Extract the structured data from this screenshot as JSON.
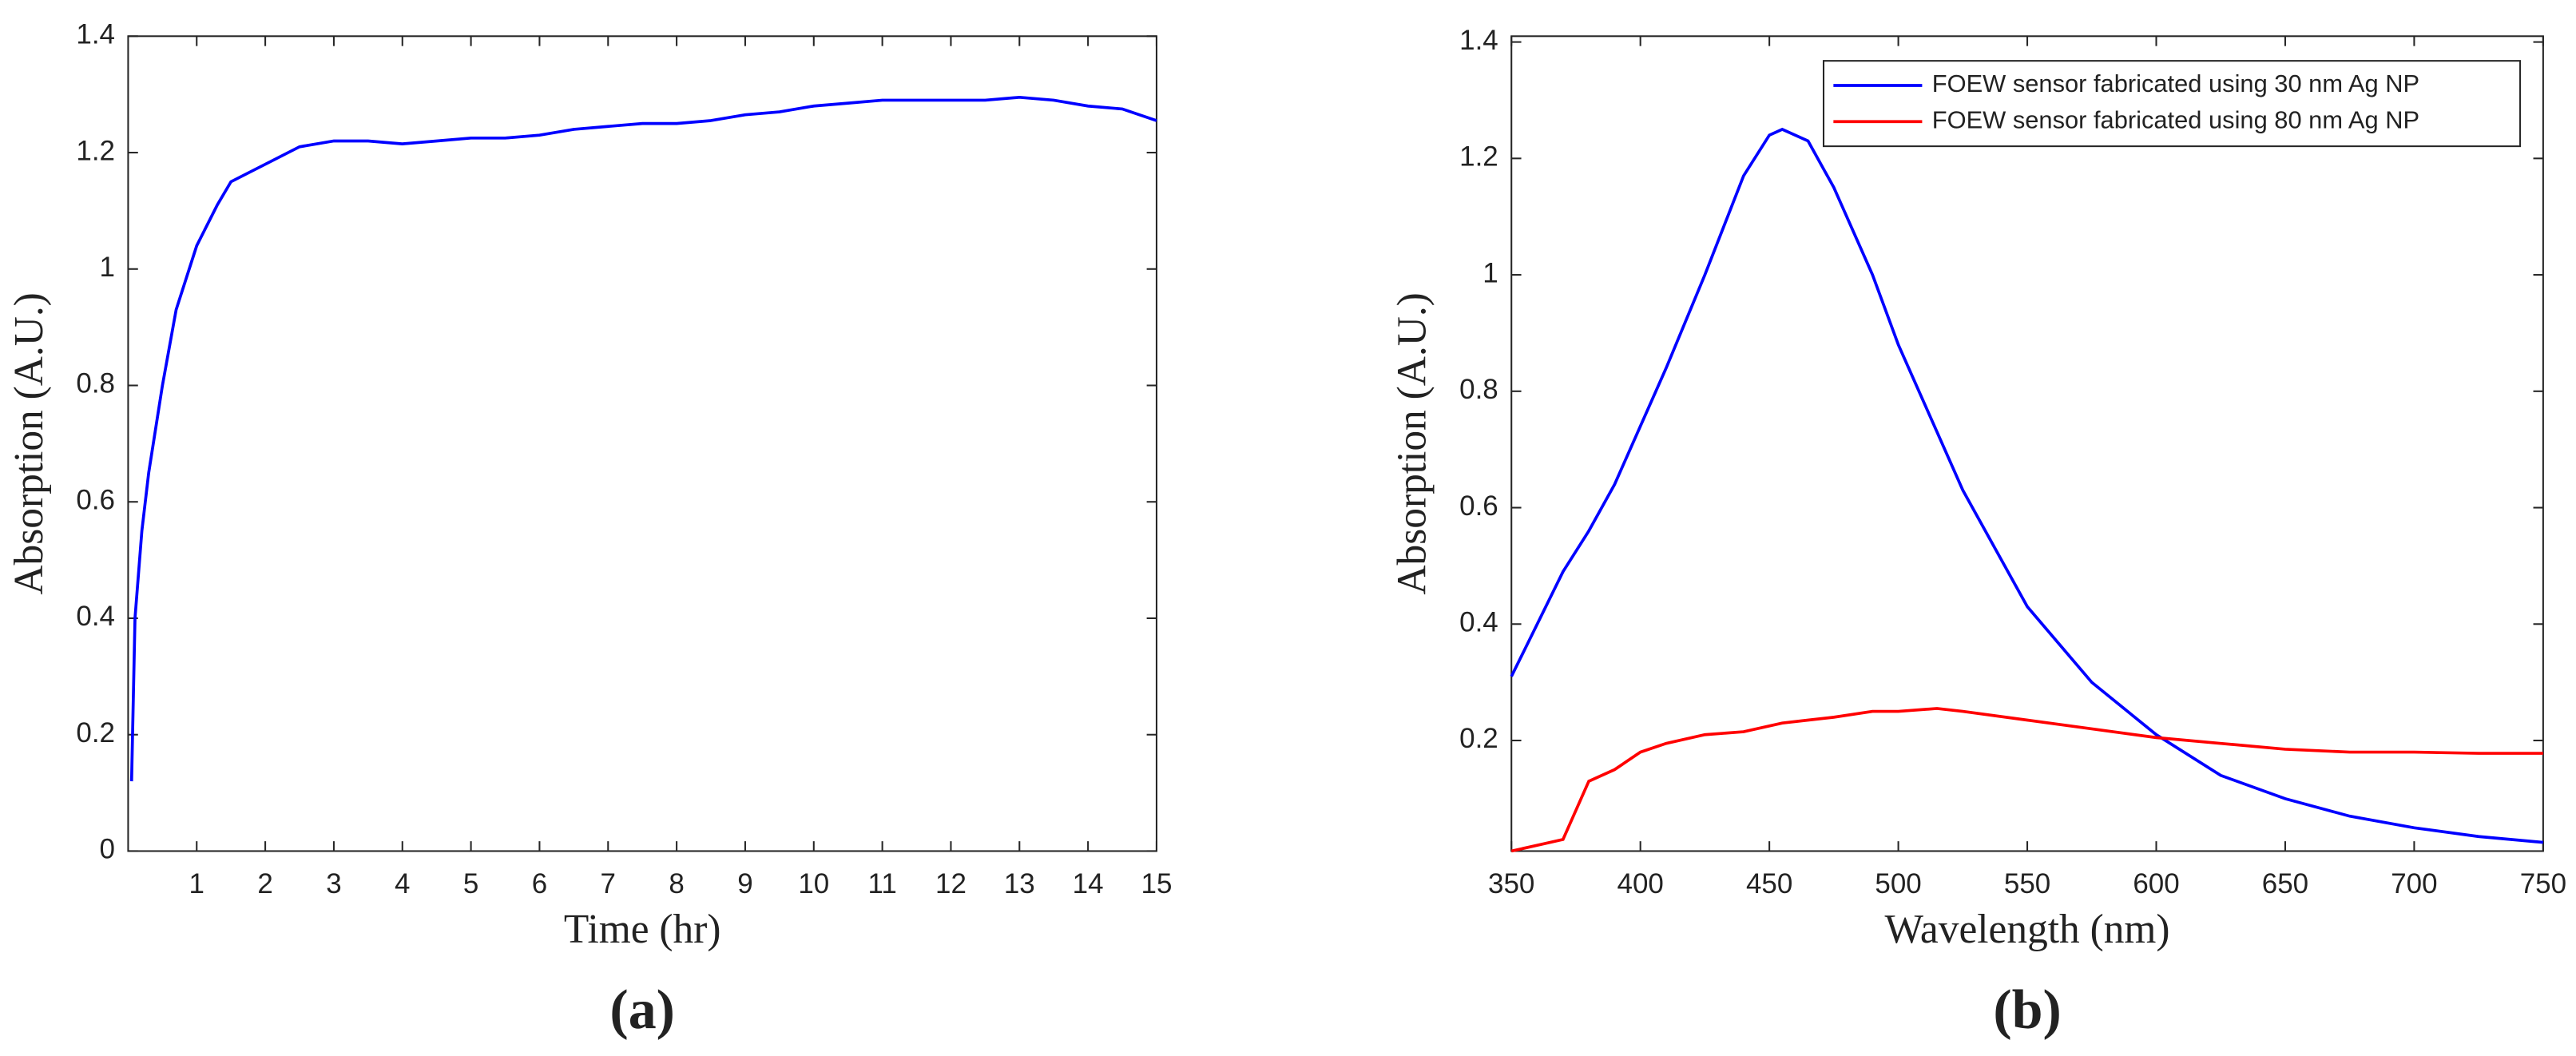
{
  "chart_data": [
    {
      "type": "line",
      "label": "(a)",
      "x_label": "Time (hr)",
      "y_label": "Absorption (A.U.)",
      "color": "#0000ff",
      "x": [
        0.05,
        0.1,
        0.2,
        0.3,
        0.5,
        0.7,
        1,
        1.3,
        1.5,
        2,
        2.5,
        3,
        3.5,
        4,
        4.5,
        5,
        5.5,
        6,
        6.5,
        7,
        7.5,
        8,
        8.5,
        9,
        9.5,
        10,
        10.5,
        11,
        11.5,
        12,
        12.5,
        13,
        13.5,
        14,
        14.5,
        15
      ],
      "values": [
        0.12,
        0.4,
        0.55,
        0.65,
        0.8,
        0.93,
        1.04,
        1.11,
        1.15,
        1.18,
        1.21,
        1.22,
        1.22,
        1.215,
        1.22,
        1.225,
        1.225,
        1.23,
        1.24,
        1.245,
        1.25,
        1.25,
        1.255,
        1.265,
        1.27,
        1.28,
        1.285,
        1.29,
        1.29,
        1.29,
        1.29,
        1.295,
        1.29,
        1.28,
        1.275,
        1.255
      ],
      "xlim": [
        0,
        15
      ],
      "xticks": [
        1,
        2,
        3,
        4,
        5,
        6,
        7,
        8,
        9,
        10,
        11,
        12,
        13,
        14,
        15
      ],
      "ylim": [
        0,
        1.4
      ],
      "yticks": [
        0,
        0.2,
        0.4,
        0.6,
        0.8,
        1,
        1.2,
        1.4
      ]
    },
    {
      "type": "line",
      "label": "(b)",
      "x_label": "Wavelength (nm)",
      "y_label": "Absorption (A.U.)",
      "legend": "top-right",
      "x": [
        350,
        360,
        370,
        380,
        390,
        400,
        410,
        425,
        440,
        450,
        455,
        465,
        475,
        490,
        500,
        515,
        525,
        550,
        575,
        600,
        625,
        650,
        675,
        700,
        725,
        750
      ],
      "series": [
        {
          "name": "FOEW sensor fabricated using 30 nm Ag NP",
          "color": "#0000ff",
          "values": [
            0.31,
            0.4,
            0.49,
            0.56,
            0.64,
            0.74,
            0.84,
            1.0,
            1.17,
            1.24,
            1.25,
            1.23,
            1.15,
            1.0,
            0.88,
            0.73,
            0.63,
            0.43,
            0.3,
            0.21,
            0.14,
            0.1,
            0.07,
            0.05,
            0.035,
            0.025
          ]
        },
        {
          "name": "FOEW sensor fabricated using 80 nm Ag NP",
          "color": "#ff0000",
          "values": [
            0.01,
            0.02,
            0.03,
            0.13,
            0.15,
            0.18,
            0.195,
            0.21,
            0.215,
            0.225,
            0.23,
            0.235,
            0.24,
            0.25,
            0.25,
            0.255,
            0.25,
            0.235,
            0.22,
            0.205,
            0.195,
            0.185,
            0.18,
            0.18,
            0.178,
            0.178
          ]
        }
      ],
      "xlim": [
        350,
        750
      ],
      "xticks": [
        350,
        400,
        450,
        500,
        550,
        600,
        650,
        700,
        750
      ],
      "ylim": [
        0.01,
        1.41
      ],
      "yticks": [
        0.2,
        0.4,
        0.6,
        0.8,
        1,
        1.2,
        1.4
      ]
    }
  ]
}
